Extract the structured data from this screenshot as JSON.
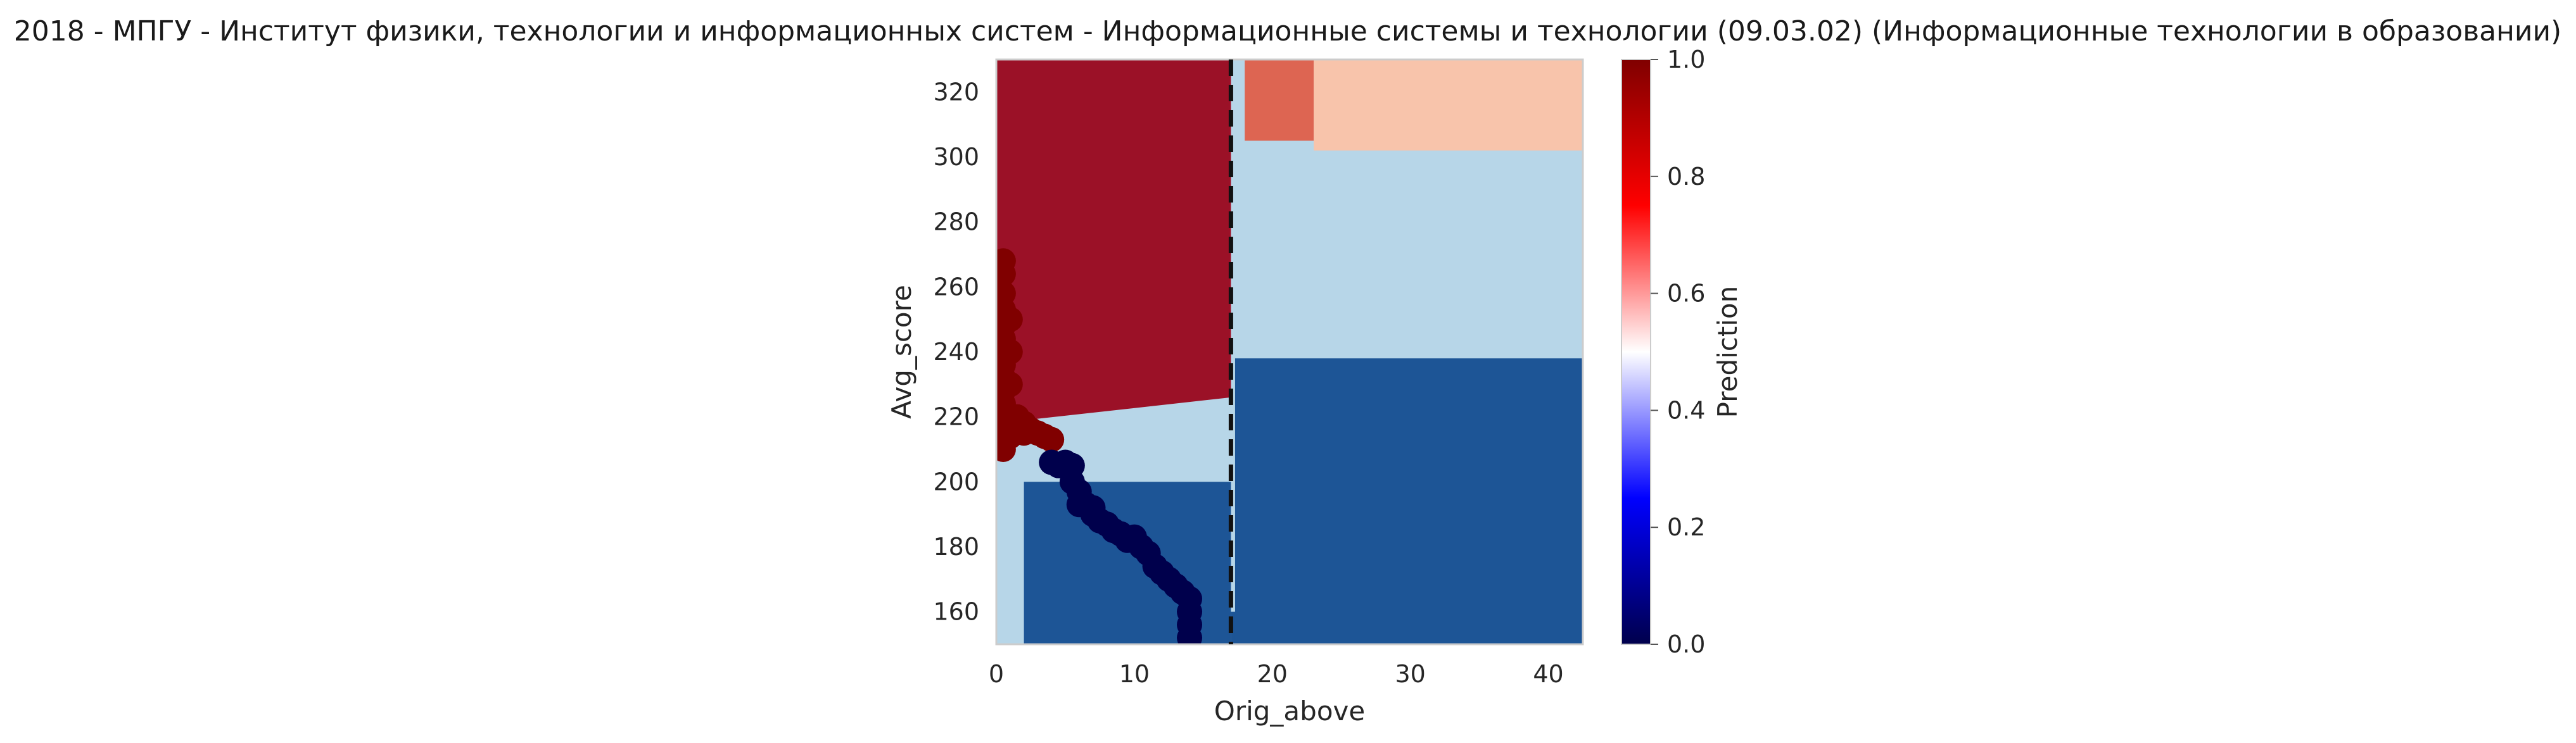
{
  "chart_data": {
    "type": "heatmap",
    "title": "2018 - МПГУ - Институт физики, технологии и информационных систем - Информационные системы и технологии (09.03.02) (Информационные технологии в образовании)",
    "xlabel": "Orig_above",
    "ylabel": "Avg_score",
    "xlim": [
      0,
      42.5
    ],
    "ylim": [
      150,
      330
    ],
    "x_ticks": [
      "0",
      "10",
      "20",
      "30",
      "40"
    ],
    "x_tick_values": [
      0,
      10,
      20,
      30,
      40
    ],
    "y_ticks": [
      "160",
      "180",
      "200",
      "220",
      "240",
      "260",
      "280",
      "300",
      "320"
    ],
    "y_tick_values": [
      160,
      180,
      200,
      220,
      240,
      260,
      280,
      300,
      320
    ],
    "colorbar": {
      "label": "Prediction",
      "range": [
        0,
        1
      ],
      "ticks": [
        "0.0",
        "0.2",
        "0.4",
        "0.6",
        "0.8",
        "1.0"
      ],
      "tick_values": [
        0,
        0.2,
        0.4,
        0.6,
        0.8,
        1.0
      ],
      "colormap": "seismic"
    },
    "vertical_line": {
      "x": 17,
      "style": "dashed",
      "color": "#111111"
    },
    "grid": false,
    "regions": [
      {
        "x": [
          0,
          17,
          17,
          0
        ],
        "y": [
          218,
          226,
          330,
          330
        ],
        "prediction": 0.95
      },
      {
        "x": [
          18,
          23,
          23,
          18
        ],
        "y": [
          305,
          305,
          330,
          330
        ],
        "prediction": 0.82
      },
      {
        "x": [
          23,
          42.5,
          42.5,
          23
        ],
        "y": [
          302,
          302,
          330,
          330
        ],
        "prediction": 0.65
      },
      {
        "x": [
          17.5,
          42.5,
          42.5,
          17.5
        ],
        "y": [
          243,
          243,
          296,
          296
        ],
        "prediction": 0.38
      },
      {
        "x": [
          0,
          17,
          17,
          42.5,
          42.5,
          0
        ],
        "y": [
          150,
          150,
          160,
          160,
          150,
          150
        ],
        "prediction": 0.2
      },
      {
        "x": [
          17.3,
          42.5,
          42.5,
          17.3
        ],
        "y": [
          150,
          150,
          238,
          238
        ],
        "prediction": 0.2
      },
      {
        "x": [
          2,
          17,
          17,
          2
        ],
        "y": [
          150,
          150,
          200,
          200
        ],
        "prediction": 0.2
      }
    ],
    "points_high": {
      "prediction": 1.0,
      "x": [
        0.5,
        0.5,
        0.5,
        0.5,
        0.5,
        0.5,
        0.5,
        0.5,
        0.5,
        0.5,
        0.5,
        0.5,
        0.5,
        0.5,
        0.5,
        0.5,
        0.5,
        1,
        1,
        1,
        1,
        1,
        1.5,
        1.5,
        2,
        2,
        2.5,
        3,
        3.5,
        4
      ],
      "y": [
        268,
        264,
        258,
        253,
        248,
        244,
        240,
        236,
        232,
        228,
        224,
        220,
        218,
        216,
        214,
        212,
        210,
        250,
        240,
        230,
        220,
        214,
        220,
        216,
        218,
        215,
        216,
        215,
        214,
        213
      ]
    },
    "points_low": {
      "prediction": 0.0,
      "x": [
        4,
        4.5,
        5,
        5.5,
        5.5,
        6,
        6,
        6.5,
        7,
        7,
        7.5,
        8,
        8.5,
        9,
        9.5,
        10,
        10.5,
        11,
        11.5,
        12,
        12.5,
        13,
        13.5,
        14,
        14,
        14,
        14
      ],
      "y": [
        206,
        205,
        206,
        205,
        200,
        197,
        193,
        193,
        192,
        190,
        188,
        187,
        185,
        184,
        182,
        183,
        180,
        178,
        174,
        172,
        170,
        168,
        166,
        164,
        160,
        156,
        152
      ]
    }
  }
}
